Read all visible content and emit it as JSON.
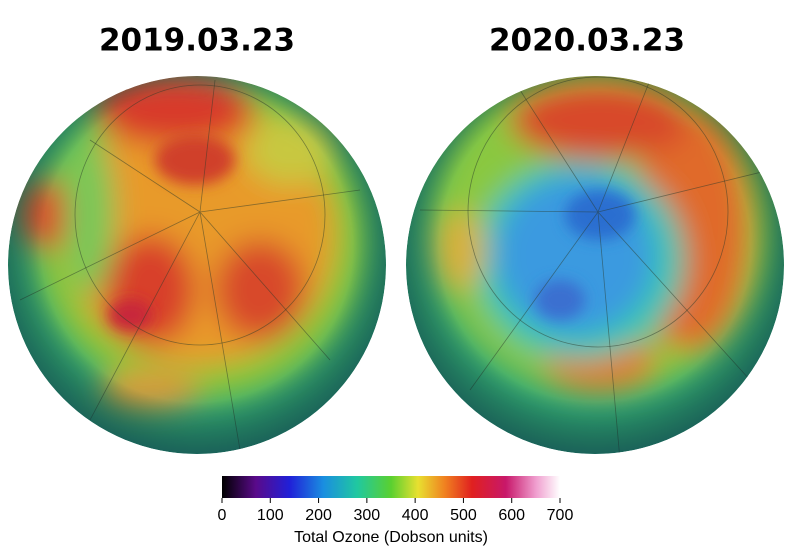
{
  "panels": [
    {
      "title": "2019.03.23"
    },
    {
      "title": "2020.03.23"
    }
  ],
  "colorbar": {
    "label": "Total Ozone (Dobson units)",
    "lim": [
      0,
      700
    ],
    "ticks": [
      0,
      100,
      200,
      300,
      400,
      500,
      600,
      700
    ]
  }
}
